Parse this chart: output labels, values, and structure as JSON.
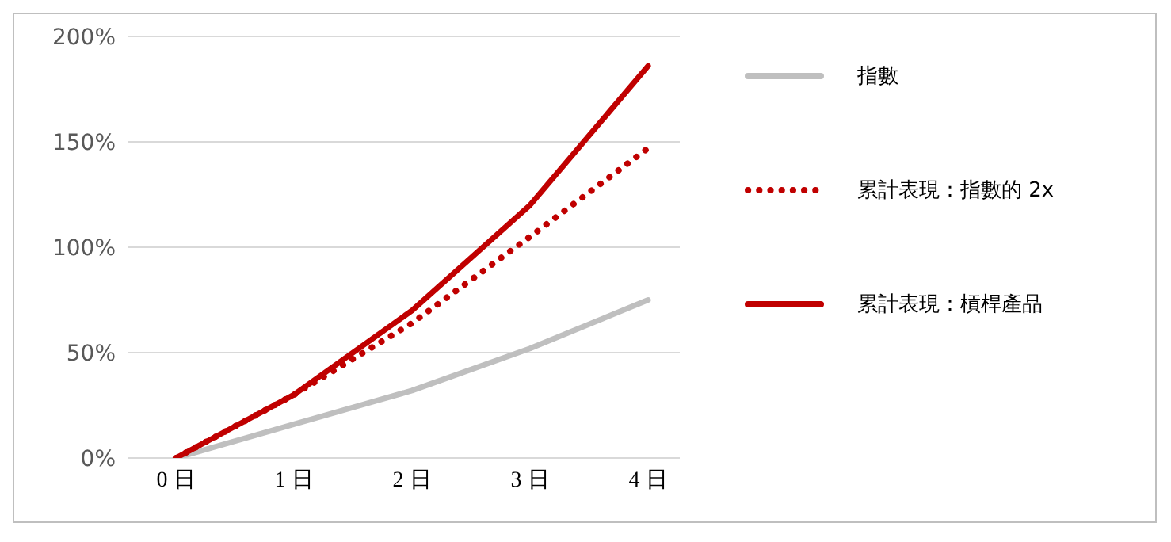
{
  "chart_data": {
    "type": "line",
    "categories": [
      "0 日",
      "1 日",
      "2 日",
      "3 日",
      "4 日"
    ],
    "series": [
      {
        "name": "指數",
        "color": "#bfbfbf",
        "values": [
          0,
          16,
          32,
          52,
          75
        ]
      },
      {
        "name": "累計表現：指數的 2x",
        "color": "#c00000",
        "line_style": "dotted",
        "values": [
          0,
          30,
          64,
          105,
          147
        ]
      },
      {
        "name": "累計表現：槓桿產品",
        "color": "#c00000",
        "values": [
          0,
          30,
          70,
          120,
          186
        ]
      }
    ],
    "ylim": [
      0,
      200
    ],
    "yticks": [
      {
        "value": 0,
        "label": "0%"
      },
      {
        "value": 50,
        "label": "50%"
      },
      {
        "value": 100,
        "label": "100%"
      },
      {
        "value": 150,
        "label": "150%"
      },
      {
        "value": 200,
        "label": "200%"
      }
    ],
    "grid": "y",
    "legend": "right",
    "marker": "none"
  }
}
